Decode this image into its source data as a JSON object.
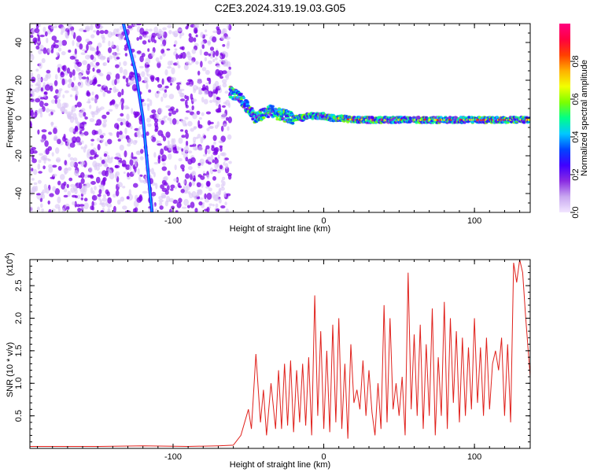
{
  "title": "C2E3.2024.319.19.03.G05",
  "colors": {
    "snr_line": "#e0201b",
    "scatter_cloud": "#7a00e6",
    "scatter_light": "#d8c4f5"
  },
  "chart_data": [
    {
      "type": "heatmap",
      "xlabel": "Height of straight line (km)",
      "ylabel": "Frequency (Hz)",
      "xlim": [
        -195,
        137
      ],
      "ylim": [
        -50,
        50
      ],
      "xticks": [
        -100,
        0,
        100
      ],
      "xtick_labels": [
        "-100",
        "0",
        "100"
      ],
      "yticks": [
        -40,
        -20,
        0,
        20,
        40
      ],
      "ytick_labels": [
        "-40",
        "-20",
        "0",
        "20",
        "40"
      ],
      "noise_region": {
        "x_from": -195,
        "x_to": -62,
        "frequency_range": [
          -50,
          50
        ]
      },
      "chirp_line": {
        "points": [
          [
            -133,
            50
          ],
          [
            -125,
            25
          ],
          [
            -120,
            0
          ],
          [
            -117,
            -25
          ],
          [
            -114,
            -50
          ]
        ]
      },
      "ridge": {
        "x": [
          -62,
          -55,
          -50,
          -45,
          -40,
          -35,
          -30,
          -25,
          -20,
          -15,
          -10,
          -5,
          0,
          5,
          10,
          20,
          30,
          40,
          60,
          80,
          100,
          120,
          137
        ],
        "frequency": [
          14,
          10,
          5,
          0,
          2,
          4,
          2,
          1,
          0,
          0,
          1,
          1,
          1,
          0,
          0,
          -1,
          -1,
          -1,
          -1,
          -1,
          -1,
          -1,
          -1
        ]
      },
      "colorbar": {
        "label": "Normalized spectral amplitude",
        "range": [
          0,
          1
        ],
        "ticks": [
          0.0,
          0.2,
          0.4,
          0.6,
          0.8
        ],
        "tick_labels": [
          "0.0",
          "0.2",
          "0.4",
          "0.6",
          "0.8"
        ],
        "colormap": [
          "#f2e6ff",
          "#c9a8f0",
          "#8a2be2",
          "#3f00ff",
          "#0044ff",
          "#00c8ff",
          "#00ff88",
          "#7cff00",
          "#f2ff00",
          "#ffb000",
          "#ff4000",
          "#ff0040",
          "#ff0080"
        ]
      },
      "grid": false
    },
    {
      "type": "line",
      "xlabel": "Height of straight line (km)",
      "ylabel": "SNR (10 * v/v)",
      "y_multiplier_label": "(x10",
      "y_multiplier_exponent": "4",
      "xlim": [
        -195,
        137
      ],
      "ylim": [
        0,
        2.9
      ],
      "xticks": [
        -100,
        0,
        100
      ],
      "xtick_labels": [
        "-100",
        "0",
        "100"
      ],
      "yticks": [
        0.5,
        1.0,
        1.5,
        2.0,
        2.5
      ],
      "ytick_labels": [
        "0.5",
        "1.0",
        "1.5",
        "2.0",
        "2.5"
      ],
      "series": [
        {
          "x": [
            -195,
            -150,
            -120,
            -90,
            -70,
            -60,
            -55,
            -50,
            -48,
            -45,
            -42,
            -40,
            -38,
            -35,
            -32,
            -30,
            -28,
            -26,
            -24,
            -22,
            -20,
            -18,
            -16,
            -14,
            -12,
            -10,
            -8,
            -6,
            -4,
            -2,
            0,
            2,
            4,
            6,
            8,
            10,
            12,
            14,
            16,
            18,
            20,
            22,
            24,
            26,
            28,
            30,
            32,
            34,
            36,
            38,
            40,
            42,
            44,
            46,
            48,
            50,
            52,
            54,
            56,
            58,
            60,
            62,
            64,
            66,
            68,
            70,
            72,
            74,
            76,
            78,
            80,
            82,
            84,
            86,
            88,
            90,
            92,
            94,
            96,
            98,
            100,
            102,
            104,
            106,
            108,
            110,
            112,
            114,
            116,
            118,
            120,
            122,
            124,
            126,
            128,
            130,
            132,
            134,
            137
          ],
          "y": [
            0.03,
            0.03,
            0.04,
            0.03,
            0.04,
            0.05,
            0.2,
            0.6,
            0.3,
            1.45,
            0.4,
            0.9,
            0.2,
            1.0,
            0.3,
            1.2,
            0.3,
            1.3,
            0.35,
            1.35,
            0.25,
            1.2,
            0.4,
            1.3,
            0.35,
            1.4,
            0.2,
            2.35,
            0.5,
            1.8,
            0.3,
            1.5,
            0.25,
            1.9,
            0.4,
            2.0,
            0.3,
            1.3,
            0.15,
            1.6,
            0.7,
            0.9,
            0.6,
            1.35,
            0.5,
            1.2,
            0.55,
            0.2,
            1.0,
            0.3,
            2.2,
            0.4,
            2.0,
            0.6,
            1.0,
            0.5,
            1.1,
            0.2,
            2.7,
            0.6,
            1.75,
            0.5,
            1.9,
            0.3,
            1.6,
            0.5,
            2.15,
            0.2,
            1.4,
            0.5,
            2.25,
            0.3,
            2.0,
            0.7,
            1.8,
            0.4,
            1.7,
            0.5,
            1.55,
            0.6,
            2.0,
            0.7,
            1.55,
            0.5,
            1.7,
            0.6,
            1.3,
            1.5,
            1.2,
            1.7,
            0.5,
            1.6,
            0.4,
            2.85,
            2.55,
            2.9,
            2.7,
            2.0,
            1.1
          ]
        }
      ],
      "grid": false
    }
  ]
}
